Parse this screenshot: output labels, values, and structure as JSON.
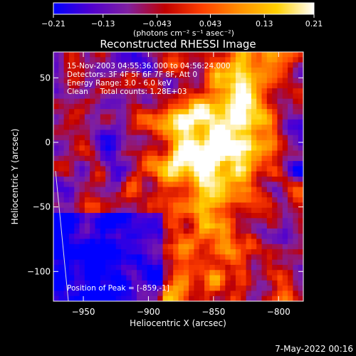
{
  "chart_data": {
    "type": "heatmap",
    "title": "Reconstructed RHESSI Image",
    "xlabel": "Heliocentric X (arcsec)",
    "ylabel": "Heliocentric Y (arcsec)",
    "xlim": [
      -973,
      -781
    ],
    "ylim": [
      -123,
      70
    ],
    "x_ticks": [
      -950,
      -900,
      -850,
      -800
    ],
    "y_ticks": [
      -100,
      -50,
      0,
      50
    ],
    "x_tick_labels": [
      "−950",
      "−900",
      "−850",
      "−800"
    ],
    "y_tick_labels": [
      "−100",
      "−50",
      "0",
      "50"
    ],
    "colorbar": {
      "range": [
        -0.21,
        0.21
      ],
      "ticks": [
        -0.21,
        -0.13,
        -0.043,
        0.043,
        0.13,
        0.21
      ],
      "tick_labels": [
        "−0.21",
        "−0.13",
        "−0.043",
        "0.043",
        "0.13",
        "0.21"
      ],
      "units": "(photons cm⁻² s⁻¹ asec⁻²)",
      "colors": [
        "#0000ff",
        "#5000d0",
        "#8020a0",
        "#c00000",
        "#ff4000",
        "#ff9000",
        "#ffd000",
        "#ffffff"
      ]
    },
    "peak": [
      -859,
      -1
    ],
    "annotations": {
      "time": "15-Nov-2003 04:55:36.000 to 04:56:24.000",
      "detectors": "Detectors: 3F 4F 5F 6F 7F 8F, Att 0",
      "energy": "Energy Range: 3.0 - 6.0 keV",
      "method": "Clean     Total counts: 1.28E+03",
      "peak_text": "Position of Peak = [-859,-1]"
    },
    "footer_date": "7-May-2022 00:16"
  }
}
